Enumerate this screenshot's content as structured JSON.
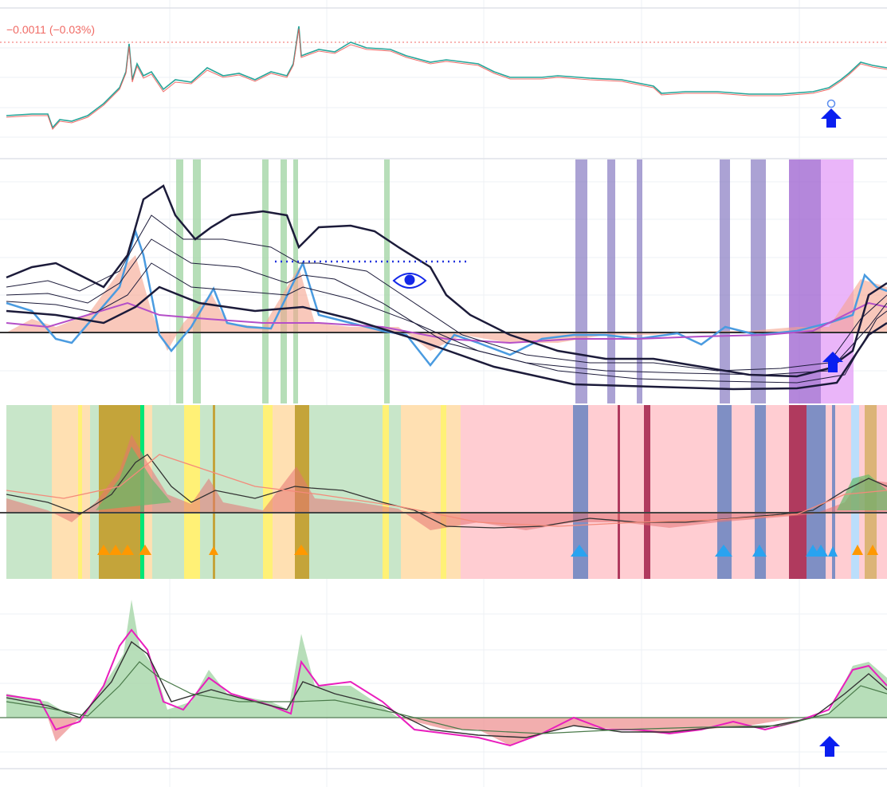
{
  "header": {
    "change": "−0.0011 (−0.03%)"
  }
}
